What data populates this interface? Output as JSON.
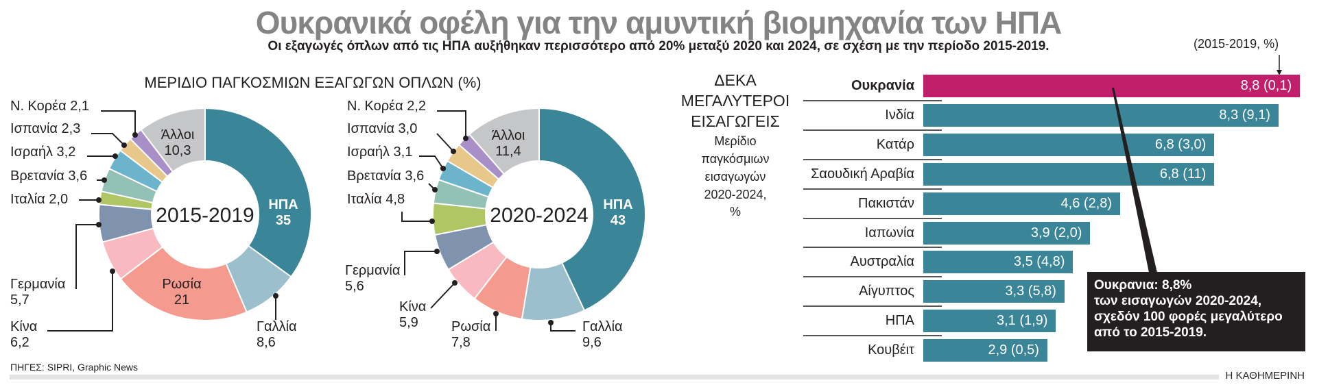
{
  "title": "Ουκρανικά οφέλη για την αμυντική βιομηχανία των ΗΠΑ",
  "subtitle": "Οι εξαγωγές όπλων από τις ΗΠΑ αυξήθηκαν περισσότερο από 20% μεταξύ 2020 και 2024, σε σχέση με την περίοδο 2015-2019.",
  "donut_section_title": "ΜΕΡΙΔΙΟ ΠΑΓΚΟΣΜΙΩΝ ΕΞΑΓΩΓΩΝ ΟΠΛΩΝ (%)",
  "importers_header": {
    "caps_lines": [
      "ΔΕΚΑ",
      "ΜΕΓΑΛΥΤΕΡΟΙ",
      "ΕΙΣΑΓΩΓΕΙΣ"
    ],
    "sub_lines": [
      "Μερίδιο",
      "παγκόσμιων",
      "εισαγωγών",
      "2020-2024,",
      "%"
    ]
  },
  "bar_note": "(2015-2019, %)",
  "callout": {
    "lines": [
      "Ουκρανια: 8,8%",
      "των εισαγωγών 2020-2024,",
      "σχεδόν 100 φορές μεγαλύτερο",
      "από το 2015-2019."
    ]
  },
  "sources": "ΠΗΓΕΣ: SIPRI, Graphic News",
  "brand": "Η ΚΑΘΗΜΕΡΙΝΗ",
  "chart_data": [
    {
      "type": "pie",
      "variant": "donut",
      "title": "2015-2019",
      "slices": [
        {
          "label": "ΗΠΑ",
          "value": 35,
          "color": "#3a8597"
        },
        {
          "label": "Γαλλία",
          "value": 8.6,
          "color": "#9bbfcc"
        },
        {
          "label": "Ρωσία",
          "value": 21,
          "color": "#f49a8f"
        },
        {
          "label": "Κίνα",
          "value": 6.2,
          "color": "#f8b9c0"
        },
        {
          "label": "Γερμανία",
          "value": 5.7,
          "color": "#7f93ae"
        },
        {
          "label": "Ιταλία",
          "value": 2.0,
          "color": "#b0c564"
        },
        {
          "label": "Βρετανία",
          "value": 3.6,
          "color": "#93c1b5"
        },
        {
          "label": "Ισραήλ",
          "value": 3.2,
          "color": "#6cb3cc"
        },
        {
          "label": "Ισπανία",
          "value": 2.3,
          "color": "#e8c88a"
        },
        {
          "label": "Ν. Κορέα",
          "value": 2.1,
          "color": "#a88fc8"
        },
        {
          "label": "Άλλοι",
          "value": 10.3,
          "color": "#c5c6c8"
        }
      ]
    },
    {
      "type": "pie",
      "variant": "donut",
      "title": "2020-2024",
      "slices": [
        {
          "label": "ΗΠΑ",
          "value": 43,
          "color": "#3a8597"
        },
        {
          "label": "Γαλλία",
          "value": 9.6,
          "color": "#9bbfcc"
        },
        {
          "label": "Ρωσία",
          "value": 7.8,
          "color": "#f49a8f"
        },
        {
          "label": "Κίνα",
          "value": 5.9,
          "color": "#f8b9c0"
        },
        {
          "label": "Γερμανία",
          "value": 5.6,
          "color": "#7f93ae"
        },
        {
          "label": "Ιταλία",
          "value": 4.8,
          "color": "#b0c564"
        },
        {
          "label": "Βρετανία",
          "value": 3.6,
          "color": "#93c1b5"
        },
        {
          "label": "Ισραήλ",
          "value": 3.1,
          "color": "#6cb3cc"
        },
        {
          "label": "Ισπανία",
          "value": 3.0,
          "color": "#e8c88a"
        },
        {
          "label": "Ν. Κορέα",
          "value": 2.2,
          "color": "#a88fc8"
        },
        {
          "label": "Άλλοι",
          "value": 11.4,
          "color": "#c5c6c8"
        }
      ]
    },
    {
      "type": "bar",
      "orientation": "horizontal",
      "categories": [
        "Ουκρανία",
        "Ινδία",
        "Κατάρ",
        "Σαουδική Αραβία",
        "Πακιστάν",
        "Ιαπωνία",
        "Αυστραλία",
        "Αίγυπτος",
        "ΗΠΑ",
        "Κουβέιτ"
      ],
      "series": [
        {
          "values": [
            8.8,
            8.3,
            6.8,
            6.8,
            4.6,
            3.9,
            3.5,
            3.3,
            3.1,
            2.9
          ]
        },
        {
          "values": [
            0.1,
            9.1,
            3.0,
            11,
            2.8,
            2.0,
            4.8,
            5.8,
            1.9,
            0.5
          ]
        }
      ],
      "highlight_category": "Ουκρανία",
      "highlight_color": "#c21f6a",
      "bar_color": "#3a8597"
    }
  ]
}
